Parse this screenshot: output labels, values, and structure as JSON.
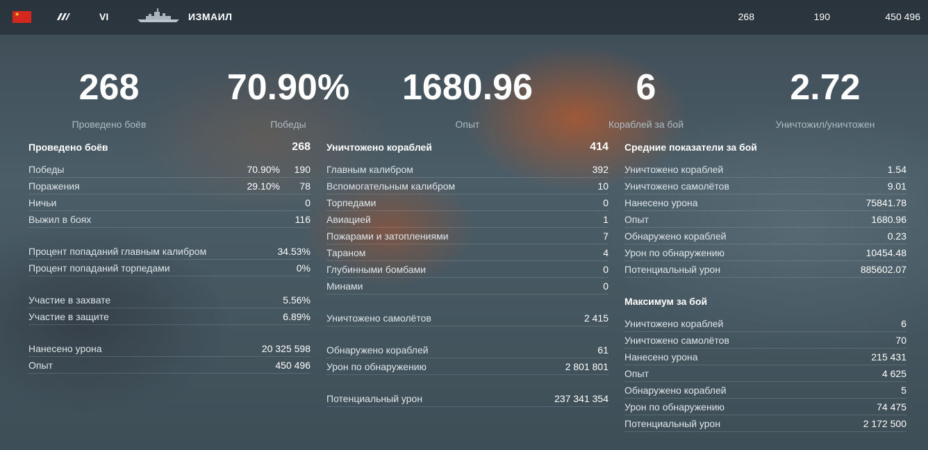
{
  "header": {
    "tier": "VI",
    "ship_name": "ИЗМАИЛ",
    "battles": "268",
    "wins": "190",
    "experience": "450 496",
    "nation_icon": "ussr-flag-icon",
    "class_icon": "battleship-class-icon",
    "ship_icon": "ship-silhouette-icon"
  },
  "summary": [
    {
      "value": "268",
      "label": "Проведено боёв"
    },
    {
      "value": "70.90%",
      "label": "Победы"
    },
    {
      "value": "1680.96",
      "label": "Опыт"
    },
    {
      "value": "6",
      "label": "Кораблей за бой"
    },
    {
      "value": "2.72",
      "label": "Уничтожил/уничтожен"
    }
  ],
  "col1": {
    "title": "Проведено боёв",
    "title_value": "268",
    "rows": [
      {
        "label": "Победы",
        "pct": "70.90%",
        "value": "190"
      },
      {
        "label": "Поражения",
        "pct": "29.10%",
        "value": "78"
      },
      {
        "label": "Ничьи",
        "value": "0"
      },
      {
        "label": "Выжил в боях",
        "value": "116"
      }
    ],
    "accuracy": [
      {
        "label": "Процент попаданий главным калибром",
        "value": "34.53%"
      },
      {
        "label": "Процент попаданий торпедами",
        "value": "0%"
      }
    ],
    "base": [
      {
        "label": "Участие в захвате",
        "value": "5.56%"
      },
      {
        "label": "Участие в защите",
        "value": "6.89%"
      }
    ],
    "totals": [
      {
        "label": "Нанесено урона",
        "value": "20 325 598"
      },
      {
        "label": "Опыт",
        "value": "450 496"
      }
    ]
  },
  "col2": {
    "title": "Уничтожено кораблей",
    "title_value": "414",
    "rows": [
      {
        "label": "Главным калибром",
        "value": "392"
      },
      {
        "label": "Вспомогательным калибром",
        "value": "10"
      },
      {
        "label": "Торпедами",
        "value": "0"
      },
      {
        "label": "Авиацией",
        "value": "1"
      },
      {
        "label": "Пожарами и затоплениями",
        "value": "7"
      },
      {
        "label": "Тараном",
        "value": "4"
      },
      {
        "label": "Глубинными бомбами",
        "value": "0"
      },
      {
        "label": "Минами",
        "value": "0"
      }
    ],
    "planes": {
      "label": "Уничтожено самолётов",
      "value": "2 415"
    },
    "spotting": [
      {
        "label": "Обнаружено кораблей",
        "value": "61"
      },
      {
        "label": "Урон по обнаружению",
        "value": "2 801 801"
      }
    ],
    "potential": {
      "label": "Потенциальный урон",
      "value": "237 341 354"
    }
  },
  "col3": {
    "avg_title": "Средние показатели за бой",
    "avg_rows": [
      {
        "label": "Уничтожено кораблей",
        "value": "1.54"
      },
      {
        "label": "Уничтожено самолётов",
        "value": "9.01"
      },
      {
        "label": "Нанесено урона",
        "value": "75841.78"
      },
      {
        "label": "Опыт",
        "value": "1680.96"
      },
      {
        "label": "Обнаружено кораблей",
        "value": "0.23"
      },
      {
        "label": "Урон по обнаружению",
        "value": "10454.48"
      },
      {
        "label": "Потенциальный урон",
        "value": "885602.07"
      }
    ],
    "max_title": "Максимум за бой",
    "max_rows": [
      {
        "label": "Уничтожено кораблей",
        "value": "6"
      },
      {
        "label": "Уничтожено самолётов",
        "value": "70"
      },
      {
        "label": "Нанесено урона",
        "value": "215 431"
      },
      {
        "label": "Опыт",
        "value": "4 625"
      },
      {
        "label": "Обнаружено кораблей",
        "value": "5"
      },
      {
        "label": "Урон по обнаружению",
        "value": "74 475"
      },
      {
        "label": "Потенциальный урон",
        "value": "2 172 500"
      }
    ]
  }
}
